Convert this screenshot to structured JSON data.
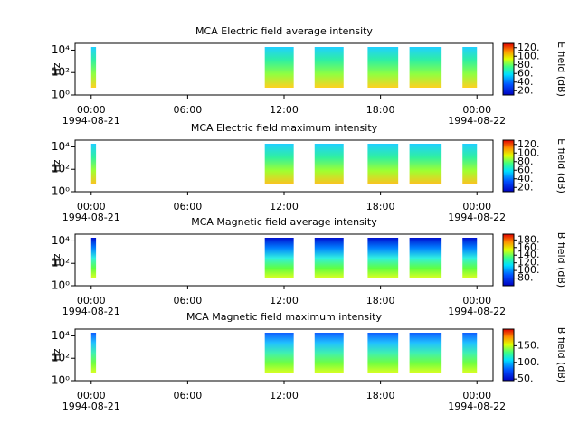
{
  "chart_data": [
    {
      "type": "spectrogram",
      "title": "MCA  Electric field average intensity",
      "ylabel": "Hz",
      "yscale": "log",
      "xlim": [
        -1,
        25
      ],
      "xticks": [
        {
          "value": 0,
          "label": "00:00"
        },
        {
          "value": 6,
          "label": "06:00"
        },
        {
          "value": 12,
          "label": "12:00"
        },
        {
          "value": 18,
          "label": "18:00"
        },
        {
          "value": 24,
          "label": "00:00"
        }
      ],
      "date_labels": [
        {
          "value": 0,
          "label": "1994-08-21"
        },
        {
          "value": 24,
          "label": "1994-08-22"
        }
      ],
      "ylim": [
        1,
        40000
      ],
      "yticks": [
        {
          "value": 1,
          "label": "10⁰"
        },
        {
          "value": 100,
          "label": "10²"
        },
        {
          "value": 10000,
          "label": "10⁴"
        }
      ],
      "colorbar_label": "E field (dB)",
      "clim": [
        10,
        130
      ],
      "cticks": [
        {
          "value": 20,
          "label": "20."
        },
        {
          "value": 40,
          "label": "40."
        },
        {
          "value": 60,
          "label": "60."
        },
        {
          "value": 80,
          "label": "80."
        },
        {
          "value": 100,
          "label": "100."
        },
        {
          "value": 120,
          "label": "120."
        }
      ],
      "colors": [
        "#20d0ff",
        "#30f0a0",
        "#90ff40",
        "#ffd020"
      ],
      "segments": [
        [
          0,
          0.3
        ],
        [
          10.8,
          12.6
        ],
        [
          13.9,
          15.7
        ],
        [
          17.2,
          19.1
        ],
        [
          19.8,
          21.8
        ],
        [
          23.1,
          24
        ]
      ]
    },
    {
      "type": "spectrogram",
      "title": "MCA  Electric field maximum intensity",
      "ylabel": "Hz",
      "yscale": "log",
      "xlim": [
        -1,
        25
      ],
      "xticks": [
        {
          "value": 0,
          "label": "00:00"
        },
        {
          "value": 6,
          "label": "06:00"
        },
        {
          "value": 12,
          "label": "12:00"
        },
        {
          "value": 18,
          "label": "18:00"
        },
        {
          "value": 24,
          "label": "00:00"
        }
      ],
      "date_labels": [
        {
          "value": 0,
          "label": "1994-08-21"
        },
        {
          "value": 24,
          "label": "1994-08-22"
        }
      ],
      "ylim": [
        1,
        40000
      ],
      "yticks": [
        {
          "value": 1,
          "label": "10⁰"
        },
        {
          "value": 100,
          "label": "10²"
        },
        {
          "value": 10000,
          "label": "10⁴"
        }
      ],
      "colorbar_label": "E field (dB)",
      "clim": [
        10,
        130
      ],
      "cticks": [
        {
          "value": 20,
          "label": "20."
        },
        {
          "value": 40,
          "label": "40."
        },
        {
          "value": 60,
          "label": "60."
        },
        {
          "value": 80,
          "label": "80."
        },
        {
          "value": 100,
          "label": "100."
        },
        {
          "value": 120,
          "label": "120."
        }
      ],
      "colors": [
        "#20d0ff",
        "#30f0a0",
        "#a0ff30",
        "#ffc020"
      ],
      "segments": [
        [
          0,
          0.3
        ],
        [
          10.8,
          12.6
        ],
        [
          13.9,
          15.7
        ],
        [
          17.2,
          19.1
        ],
        [
          19.8,
          21.8
        ],
        [
          23.1,
          24
        ]
      ]
    },
    {
      "type": "spectrogram",
      "title": "MCA  Magnetic field average intensity",
      "ylabel": "Hz",
      "yscale": "log",
      "xlim": [
        -1,
        25
      ],
      "xticks": [
        {
          "value": 0,
          "label": "00:00"
        },
        {
          "value": 6,
          "label": "06:00"
        },
        {
          "value": 12,
          "label": "12:00"
        },
        {
          "value": 18,
          "label": "18:00"
        },
        {
          "value": 24,
          "label": "00:00"
        }
      ],
      "date_labels": [
        {
          "value": 0,
          "label": "1994-08-21"
        },
        {
          "value": 24,
          "label": "1994-08-22"
        }
      ],
      "ylim": [
        1,
        40000
      ],
      "yticks": [
        {
          "value": 1,
          "label": "10⁰"
        },
        {
          "value": 100,
          "label": "10²"
        },
        {
          "value": 10000,
          "label": "10⁴"
        }
      ],
      "colorbar_label": "B field (dB)",
      "clim": [
        60,
        195
      ],
      "cticks": [
        {
          "value": 80,
          "label": "80."
        },
        {
          "value": 100,
          "label": "100."
        },
        {
          "value": 120,
          "label": "120."
        },
        {
          "value": 140,
          "label": "140."
        },
        {
          "value": 160,
          "label": "160."
        },
        {
          "value": 180,
          "label": "180."
        }
      ],
      "colors": [
        "#0010d0",
        "#0080ff",
        "#30f0e0",
        "#60ff40",
        "#e0ff20"
      ],
      "segments": [
        [
          0,
          0.3
        ],
        [
          10.8,
          12.6
        ],
        [
          13.9,
          15.7
        ],
        [
          17.2,
          19.1
        ],
        [
          19.8,
          21.8
        ],
        [
          23.1,
          24
        ]
      ]
    },
    {
      "type": "spectrogram",
      "title": "MCA  Magnetic field maximum intensity",
      "ylabel": "Hz",
      "yscale": "log",
      "xlim": [
        -1,
        25
      ],
      "xticks": [
        {
          "value": 0,
          "label": "00:00"
        },
        {
          "value": 6,
          "label": "06:00"
        },
        {
          "value": 12,
          "label": "12:00"
        },
        {
          "value": 18,
          "label": "18:00"
        },
        {
          "value": 24,
          "label": "00:00"
        }
      ],
      "date_labels": [
        {
          "value": 0,
          "label": "1994-08-21"
        },
        {
          "value": 24,
          "label": "1994-08-22"
        }
      ],
      "ylim": [
        1,
        40000
      ],
      "yticks": [
        {
          "value": 1,
          "label": "10⁰"
        },
        {
          "value": 100,
          "label": "10²"
        },
        {
          "value": 10000,
          "label": "10⁴"
        }
      ],
      "colorbar_label": "B field (dB)",
      "clim": [
        45,
        200
      ],
      "cticks": [
        {
          "value": 50,
          "label": "50."
        },
        {
          "value": 100,
          "label": "100."
        },
        {
          "value": 150,
          "label": "150."
        }
      ],
      "colors": [
        "#1060ff",
        "#20c0ff",
        "#40f0b0",
        "#70ff40",
        "#e0ff20"
      ],
      "segments": [
        [
          0,
          0.3
        ],
        [
          10.8,
          12.6
        ],
        [
          13.9,
          15.7
        ],
        [
          17.2,
          19.1
        ],
        [
          19.8,
          21.8
        ],
        [
          23.1,
          24
        ]
      ]
    }
  ]
}
